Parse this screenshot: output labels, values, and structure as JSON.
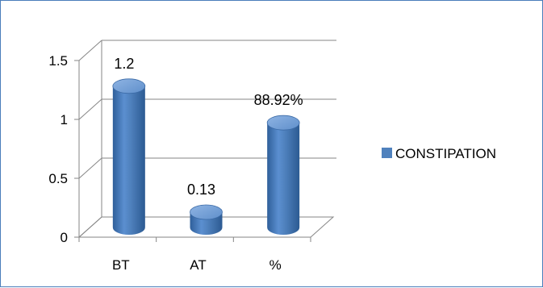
{
  "chart_data": {
    "type": "bar",
    "style": "3d-cylinder",
    "categories": [
      "BT",
      "AT",
      "%"
    ],
    "series": [
      {
        "name": "CONSTIPATION",
        "values": [
          1.2,
          0.13,
          0.8892
        ],
        "data_labels": [
          "1.2",
          "0.13",
          "88.92%"
        ],
        "color": "#4f81bd"
      }
    ],
    "yticks": [
      "0",
      "0.5",
      "1",
      "1.5"
    ],
    "ylim": [
      0,
      1.5
    ],
    "grid": true,
    "legend": "right"
  }
}
